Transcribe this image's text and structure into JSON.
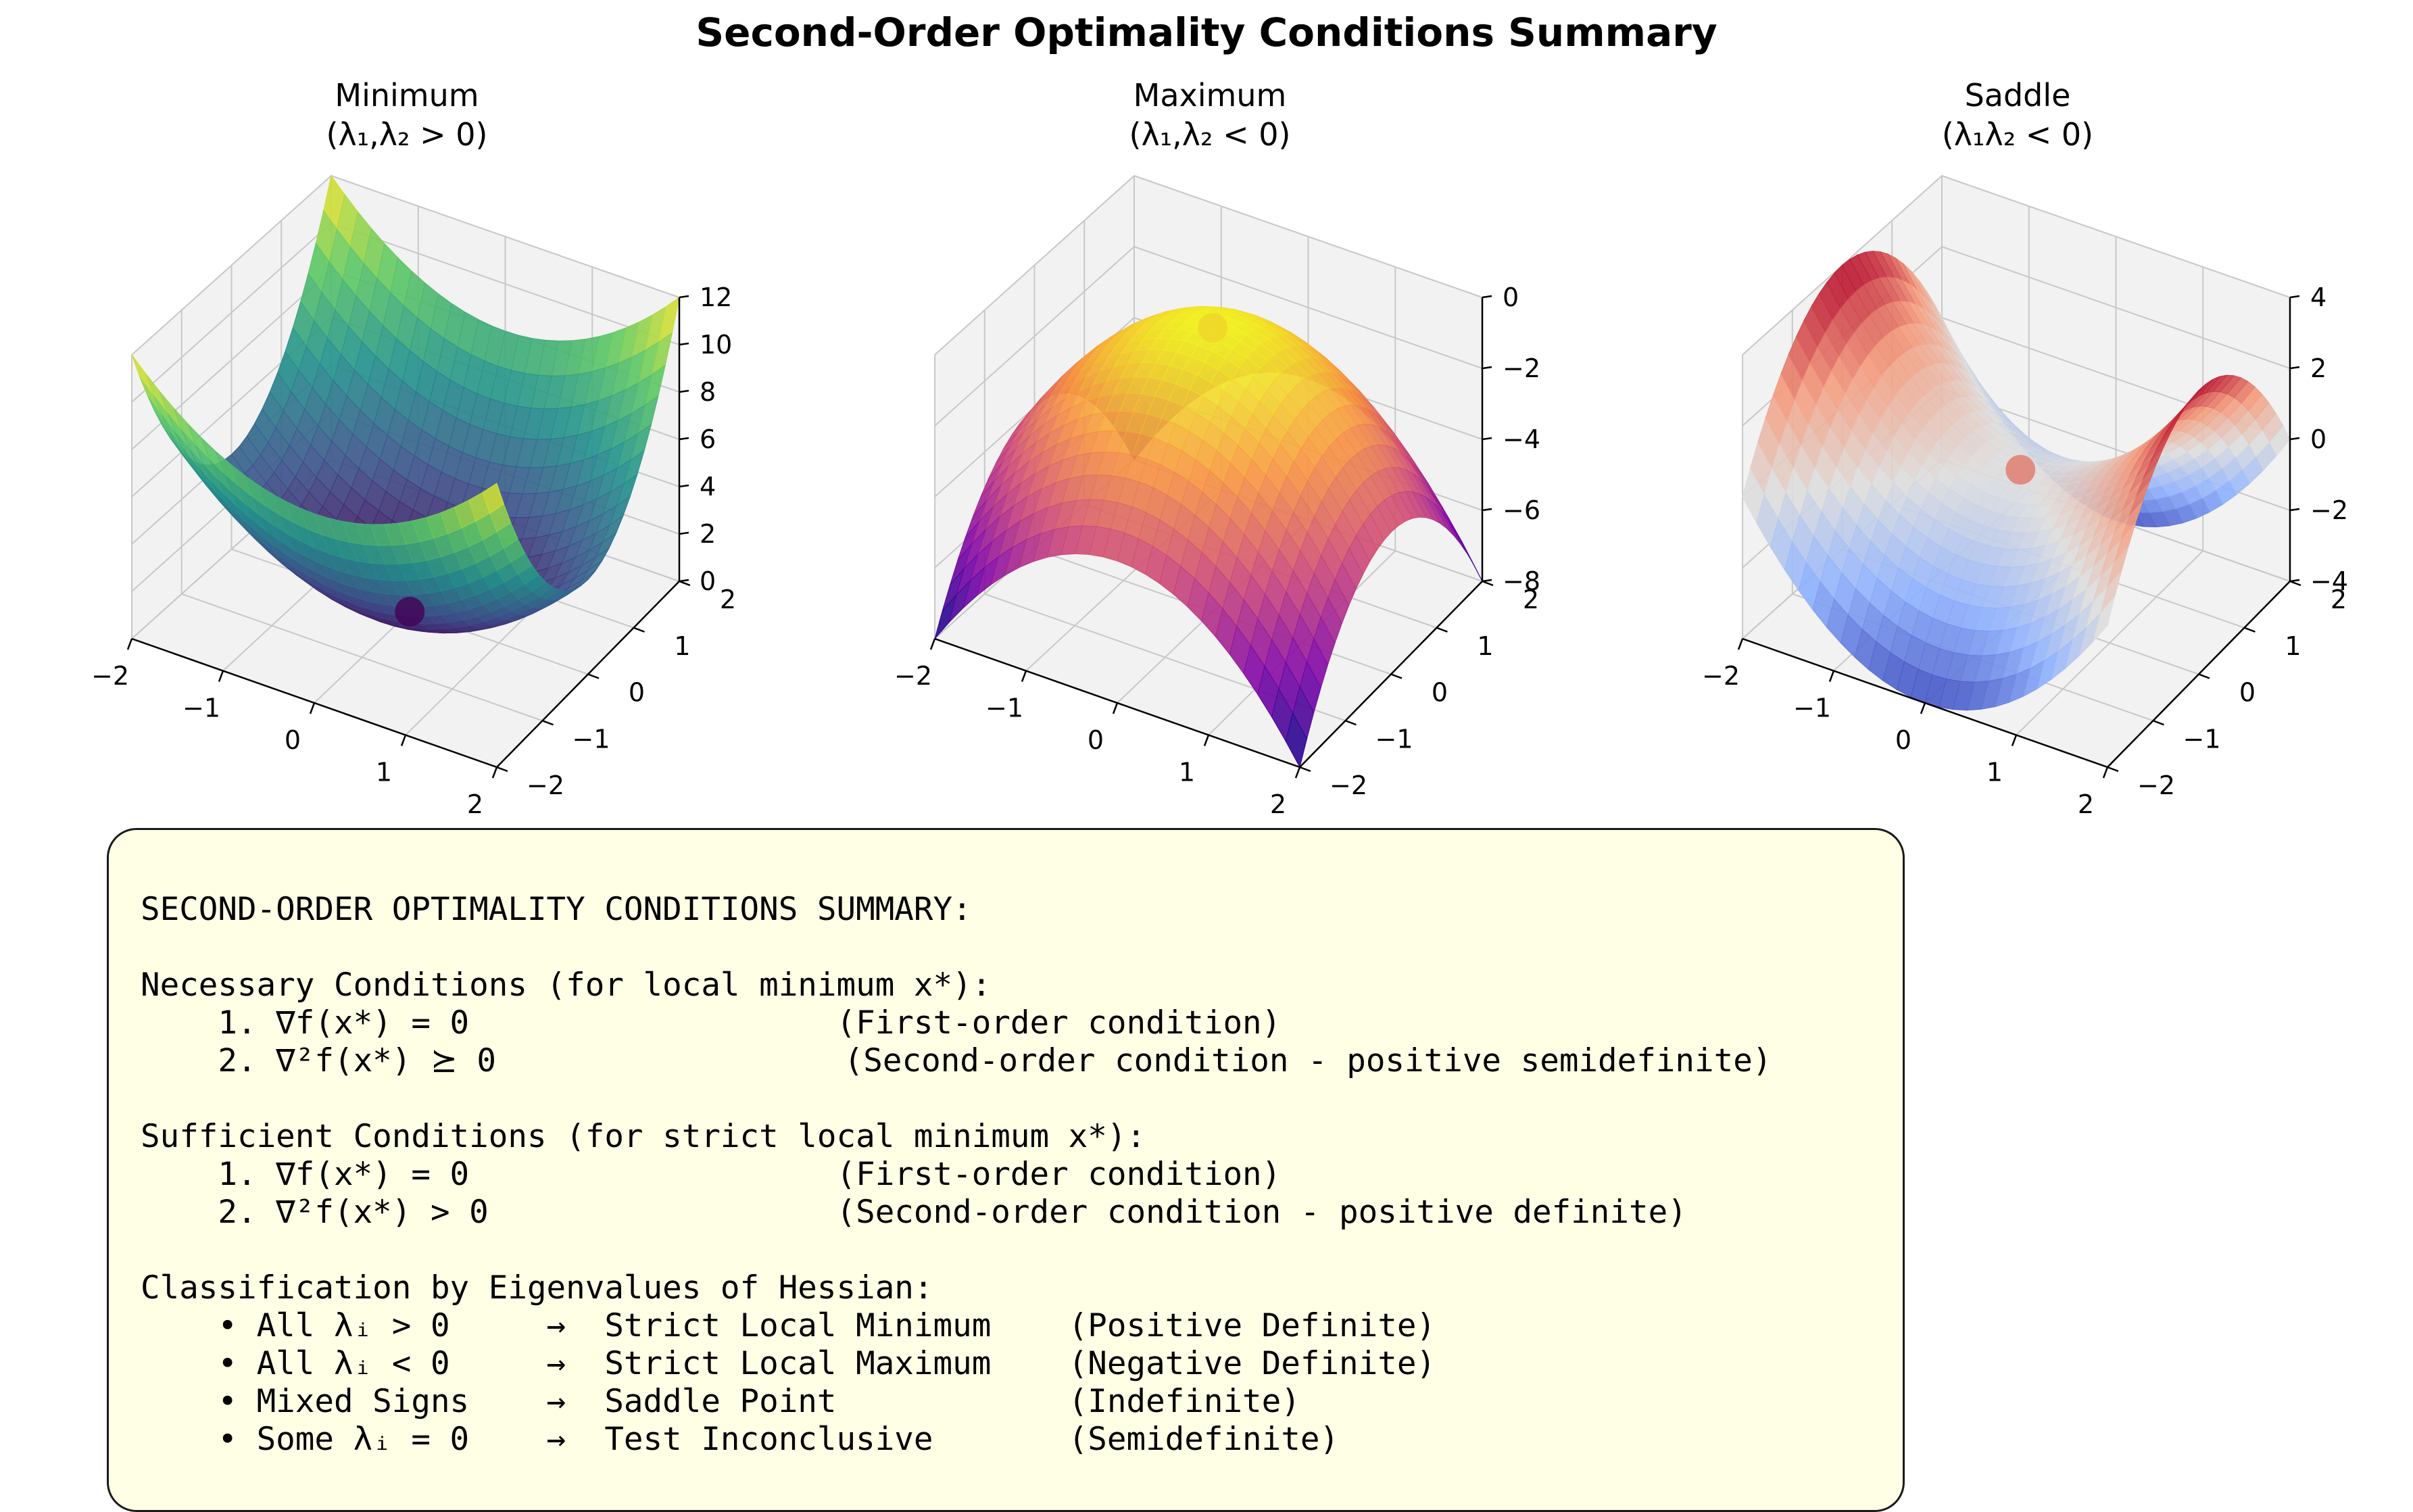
{
  "figure_title": "Second-Order Optimality Conditions Summary",
  "chart_data": [
    {
      "type": "surface",
      "title_line1": "Minimum",
      "title_line2": "(λ₁,λ₂ > 0)",
      "function": "x^2 + 2y^2",
      "colormap": "viridis",
      "x_ticks": [
        "−2",
        "−1",
        "0",
        "1",
        "2"
      ],
      "y_ticks": [
        "−2",
        "−1",
        "0",
        "1",
        "2"
      ],
      "z_ticks": [
        "0",
        "2",
        "4",
        "6",
        "8",
        "10",
        "12"
      ],
      "xlim": [
        -2,
        2
      ],
      "ylim": [
        -2,
        2
      ],
      "zlim": [
        0,
        12
      ],
      "critical_point": {
        "x": 0,
        "y": 0,
        "z": 0
      },
      "marker_color": "#440154",
      "grid": true
    },
    {
      "type": "surface",
      "title_line1": "Maximum",
      "title_line2": "(λ₁,λ₂ < 0)",
      "function": "-(x^2 + y^2)",
      "colormap": "plasma",
      "x_ticks": [
        "−2",
        "−1",
        "0",
        "1",
        "2"
      ],
      "y_ticks": [
        "−2",
        "−1",
        "0",
        "1",
        "2"
      ],
      "z_ticks": [
        "0",
        "−2",
        "−4",
        "−6",
        "−8"
      ],
      "xlim": [
        -2,
        2
      ],
      "ylim": [
        -2,
        2
      ],
      "zlim": [
        -8,
        0
      ],
      "critical_point": {
        "x": 0,
        "y": 0,
        "z": 0
      },
      "marker_color": "#f0d52a",
      "grid": true
    },
    {
      "type": "surface",
      "title_line1": "Saddle",
      "title_line2": "(λ₁λ₂ < 0)",
      "function": "x^2 - y^2",
      "colormap": "coolwarm",
      "x_ticks": [
        "−2",
        "−1",
        "0",
        "1",
        "2"
      ],
      "y_ticks": [
        "−2",
        "−1",
        "0",
        "1",
        "2"
      ],
      "z_ticks": [
        "4",
        "2",
        "0",
        "−2",
        "−4"
      ],
      "xlim": [
        -2,
        2
      ],
      "ylim": [
        -2,
        2
      ],
      "zlim": [
        -4,
        4
      ],
      "critical_point": {
        "x": 0,
        "y": 0,
        "z": 0
      },
      "marker_color": "#e0776a",
      "grid": true
    }
  ],
  "summary": {
    "text": "SECOND-ORDER OPTIMALITY CONDITIONS SUMMARY:\n\nNecessary Conditions (for local minimum x*):\n    1. ∇f(x*) = 0                   (First-order condition)\n    2. ∇²f(x*) ⪰ 0                  (Second-order condition - positive semidefinite)\n\nSufficient Conditions (for strict local minimum x*):\n    1. ∇f(x*) = 0                   (First-order condition)\n    2. ∇²f(x*) > 0                  (Second-order condition - positive definite)\n\nClassification by Eigenvalues of Hessian:\n    • All λᵢ > 0     →  Strict Local Minimum    (Positive Definite)\n    • All λᵢ < 0     →  Strict Local Maximum    (Negative Definite)\n    • Mixed Signs    →  Saddle Point            (Indefinite)\n    • Some λᵢ = 0    →  Test Inconclusive       (Semidefinite)",
    "background": "#ffffe6"
  }
}
